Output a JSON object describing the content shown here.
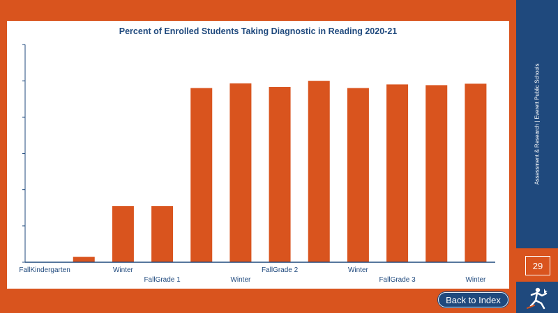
{
  "sidebar": {
    "text": "Assessment & Research | Everett Public Schools",
    "page_number": "29"
  },
  "nav": {
    "back_label": "Back to Index"
  },
  "colors": {
    "bar": "#d9541e",
    "brand_blue": "#1f497d",
    "background_orange": "#d9541e"
  },
  "chart_data": {
    "type": "bar",
    "title": "Percent of Enrolled Students Taking Diagnostic in Reading 2020-21",
    "categories": [
      "FallKindergarten",
      "",
      "Winter",
      "FallGrade 1",
      "",
      "Winter",
      "FallGrade 2",
      "",
      "Winter",
      "FallGrade 3",
      "",
      "Winter"
    ],
    "values": [
      0,
      1.5,
      15.5,
      15.5,
      48,
      49.3,
      48.3,
      50,
      48,
      49,
      48.8,
      49.2
    ],
    "ylim": [
      0,
      60
    ],
    "grid": false,
    "xlabel": "",
    "ylabel": ""
  }
}
